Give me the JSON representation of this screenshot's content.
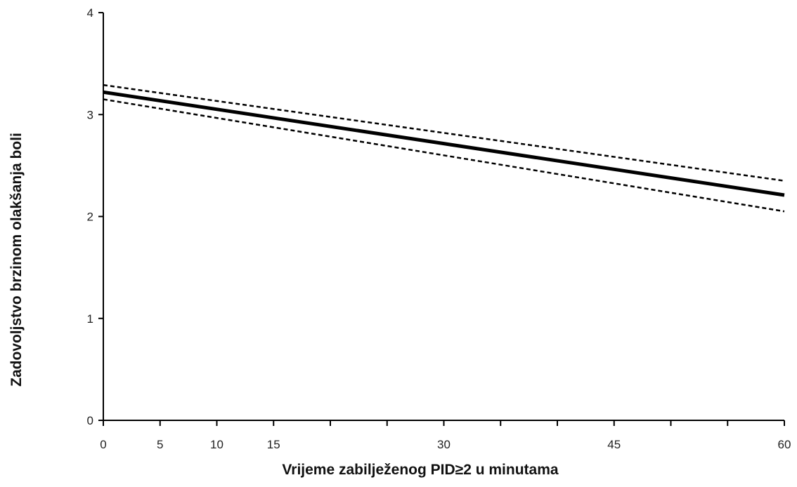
{
  "chart_data": {
    "type": "line",
    "title": "",
    "xlabel": "Vrijeme zabilježenog PID≥2 u minutama",
    "ylabel": "Zadovoljstvo brzinom olakšanja boli",
    "xlim": [
      0,
      60
    ],
    "ylim": [
      0,
      4
    ],
    "x_tick_labels": [
      0,
      5,
      10,
      15,
      30,
      45,
      60
    ],
    "x_minor_ticks": [
      20,
      25,
      35,
      40,
      50,
      55
    ],
    "y_tick_labels": [
      0,
      1,
      2,
      3,
      4
    ],
    "grid": false,
    "legend": "none",
    "series": [
      {
        "style": "solid",
        "color": "#000000",
        "x": [
          0,
          60
        ],
        "y": [
          3.22,
          2.21
        ]
      },
      {
        "style": "dashed",
        "color": "#000000",
        "x": [
          0,
          60
        ],
        "y": [
          3.29,
          2.35
        ]
      },
      {
        "style": "dashed",
        "color": "#000000",
        "x": [
          0,
          60
        ],
        "y": [
          3.15,
          2.05
        ]
      }
    ]
  }
}
